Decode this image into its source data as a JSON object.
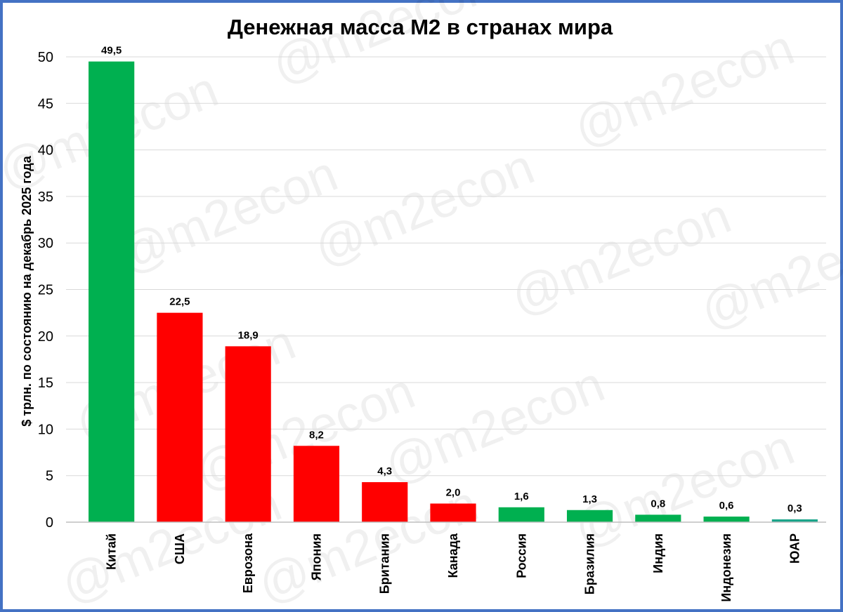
{
  "chart_data": {
    "type": "bar",
    "title": "Денежная масса М2 в странах мира",
    "xlabel": "",
    "ylabel": "$ трлн. по состоянию на декабрь 2025 года",
    "ylim": [
      0,
      50
    ],
    "yticks": [
      0,
      5,
      10,
      15,
      20,
      25,
      30,
      35,
      40,
      45,
      50
    ],
    "grid": true,
    "categories": [
      "Китай",
      "США",
      "Еврозона",
      "Япония",
      "Британия",
      "Канада",
      "Россия",
      "Бразилия",
      "Индия",
      "Индонезия",
      "ЮАР"
    ],
    "values": [
      49.5,
      22.5,
      18.9,
      8.2,
      4.3,
      2.0,
      1.6,
      1.3,
      0.8,
      0.6,
      0.3
    ],
    "data_labels": [
      "49,5",
      "22,5",
      "18,9",
      "8,2",
      "4,3",
      "2,0",
      "1,6",
      "1,3",
      "0,8",
      "0,6",
      "0,3"
    ],
    "bar_colors": [
      "#00b050",
      "#ff0000",
      "#ff0000",
      "#ff0000",
      "#ff0000",
      "#ff0000",
      "#00b050",
      "#00b050",
      "#00b050",
      "#00b050",
      "#1aa58a"
    ]
  },
  "watermark": "@m2econ",
  "colors": {
    "frame": "#4472c4",
    "grid": "#d9d9d9",
    "axis": "#bfbfbf"
  }
}
